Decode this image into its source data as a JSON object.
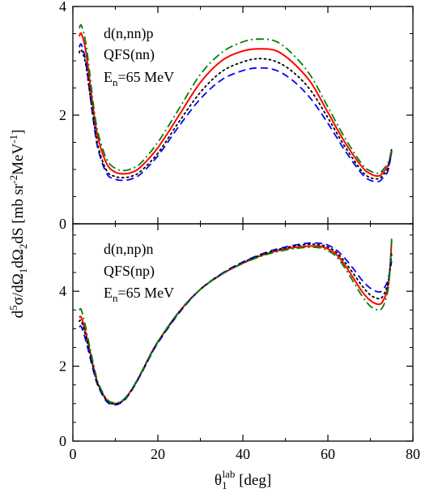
{
  "chart_data": [
    {
      "type": "line",
      "panel": "top",
      "annotations": [
        "d(n,nn)p",
        "QFS(nn)"
      ],
      "energy_label": {
        "base": "E",
        "sub": "n",
        "rest": "=65 MeV"
      },
      "xlim": [
        0,
        80
      ],
      "ylim": [
        0,
        4
      ],
      "yticks": [
        0,
        2,
        4
      ],
      "grid": false,
      "legend": "none",
      "series": [
        {
          "color": "#ff0000",
          "style": "solid",
          "x": [
            1.5,
            2,
            3,
            4,
            5,
            6,
            8,
            10,
            12,
            14,
            16,
            20,
            25,
            30,
            35,
            40,
            44,
            48,
            52,
            56,
            60,
            64,
            68,
            70,
            72,
            73,
            74,
            74.5,
            75
          ],
          "y": [
            3.45,
            3.5,
            3.2,
            2.6,
            2.0,
            1.55,
            1.1,
            0.95,
            0.92,
            0.95,
            1.05,
            1.4,
            2.0,
            2.6,
            3.0,
            3.18,
            3.22,
            3.18,
            2.95,
            2.6,
            2.05,
            1.5,
            1.05,
            0.92,
            0.88,
            0.95,
            1.05,
            1.15,
            1.32
          ]
        },
        {
          "color": "#0000ff",
          "style": "dashed",
          "x": [
            1.5,
            2,
            3,
            4,
            5,
            6,
            8,
            10,
            12,
            14,
            16,
            20,
            25,
            30,
            35,
            40,
            44,
            48,
            52,
            56,
            60,
            64,
            68,
            70,
            72,
            73,
            74,
            74.5,
            75
          ],
          "y": [
            3.25,
            3.3,
            3.0,
            2.4,
            1.8,
            1.35,
            0.92,
            0.82,
            0.8,
            0.83,
            0.92,
            1.25,
            1.8,
            2.3,
            2.65,
            2.82,
            2.87,
            2.82,
            2.62,
            2.3,
            1.85,
            1.35,
            0.92,
            0.8,
            0.78,
            0.85,
            0.95,
            1.1,
            1.35
          ]
        },
        {
          "color": "#000000",
          "style": "dotted",
          "x": [
            1.5,
            2,
            3,
            4,
            5,
            6,
            8,
            10,
            12,
            14,
            16,
            20,
            25,
            30,
            35,
            40,
            44,
            48,
            52,
            56,
            60,
            64,
            68,
            70,
            72,
            73,
            74,
            74.5,
            75
          ],
          "y": [
            3.15,
            3.2,
            2.95,
            2.4,
            1.85,
            1.4,
            0.97,
            0.87,
            0.85,
            0.88,
            0.97,
            1.3,
            1.88,
            2.42,
            2.8,
            2.98,
            3.04,
            2.98,
            2.78,
            2.45,
            1.95,
            1.42,
            0.97,
            0.85,
            0.83,
            0.9,
            1.0,
            1.15,
            1.38
          ]
        },
        {
          "color": "#008000",
          "style": "dashdot",
          "x": [
            1.5,
            2,
            3,
            4,
            5,
            6,
            8,
            10,
            12,
            14,
            16,
            20,
            25,
            30,
            35,
            40,
            44,
            48,
            52,
            56,
            60,
            64,
            68,
            70,
            72,
            73,
            74,
            74.5,
            75
          ],
          "y": [
            3.6,
            3.65,
            3.35,
            2.75,
            2.1,
            1.65,
            1.18,
            1.02,
            0.98,
            1.02,
            1.12,
            1.5,
            2.12,
            2.75,
            3.15,
            3.35,
            3.4,
            3.35,
            3.1,
            2.72,
            2.15,
            1.58,
            1.1,
            0.97,
            0.93,
            1.0,
            1.1,
            1.2,
            1.38
          ]
        }
      ]
    },
    {
      "type": "line",
      "panel": "bottom",
      "annotations": [
        "d(n,np)n",
        "QFS(np)"
      ],
      "energy_label": {
        "base": "E",
        "sub": "n",
        "rest": "=65 MeV"
      },
      "xlim": [
        0,
        80
      ],
      "ylim": [
        0,
        5.8
      ],
      "yticks": [
        0,
        2,
        4
      ],
      "xticks": [
        0,
        20,
        40,
        60,
        80
      ],
      "grid": false,
      "legend": "none",
      "series": [
        {
          "color": "#ff0000",
          "style": "solid",
          "x": [
            1.5,
            2,
            3,
            4,
            5,
            6,
            8,
            10,
            12,
            14,
            16,
            18,
            20,
            25,
            30,
            35,
            40,
            45,
            50,
            55,
            58,
            60,
            62,
            64,
            66,
            68,
            70,
            72,
            73,
            74,
            74.5,
            75
          ],
          "y": [
            3.3,
            3.3,
            2.9,
            2.4,
            1.9,
            1.5,
            1.1,
            1.0,
            1.1,
            1.4,
            1.8,
            2.25,
            2.65,
            3.45,
            4.05,
            4.45,
            4.75,
            4.98,
            5.13,
            5.2,
            5.2,
            5.13,
            4.98,
            4.7,
            4.35,
            4.0,
            3.75,
            3.65,
            3.75,
            4.05,
            4.45,
            5.35
          ]
        },
        {
          "color": "#0000ff",
          "style": "dashed",
          "x": [
            1.5,
            2,
            3,
            4,
            5,
            6,
            8,
            10,
            12,
            14,
            16,
            18,
            20,
            25,
            30,
            35,
            40,
            45,
            50,
            55,
            58,
            60,
            62,
            64,
            66,
            68,
            70,
            72,
            73,
            74,
            74.5,
            75
          ],
          "y": [
            3.05,
            3.05,
            2.7,
            2.25,
            1.8,
            1.45,
            1.05,
            0.97,
            1.08,
            1.38,
            1.78,
            2.22,
            2.62,
            3.42,
            4.05,
            4.47,
            4.78,
            5.02,
            5.18,
            5.28,
            5.28,
            5.23,
            5.1,
            4.88,
            4.6,
            4.3,
            4.08,
            3.98,
            4.05,
            4.25,
            4.5,
            4.8
          ]
        },
        {
          "color": "#000000",
          "style": "dotted",
          "x": [
            1.5,
            2,
            3,
            4,
            5,
            6,
            8,
            10,
            12,
            14,
            16,
            18,
            20,
            25,
            30,
            35,
            40,
            45,
            50,
            55,
            58,
            60,
            62,
            64,
            66,
            68,
            70,
            72,
            73,
            74,
            74.5,
            75
          ],
          "y": [
            3.2,
            3.2,
            2.82,
            2.35,
            1.86,
            1.48,
            1.08,
            0.99,
            1.1,
            1.4,
            1.8,
            2.24,
            2.64,
            3.44,
            4.05,
            4.46,
            4.77,
            5.0,
            5.16,
            5.25,
            5.24,
            5.18,
            5.04,
            4.78,
            4.47,
            4.15,
            3.9,
            3.8,
            3.88,
            4.15,
            4.47,
            5.0
          ]
        },
        {
          "color": "#008000",
          "style": "dashdot",
          "x": [
            1.5,
            2,
            3,
            4,
            5,
            6,
            8,
            10,
            12,
            14,
            16,
            18,
            20,
            25,
            30,
            35,
            40,
            45,
            50,
            55,
            58,
            60,
            62,
            64,
            66,
            68,
            70,
            72,
            73,
            74,
            74.5,
            75
          ],
          "y": [
            3.5,
            3.5,
            3.05,
            2.5,
            1.98,
            1.55,
            1.12,
            1.02,
            1.12,
            1.42,
            1.82,
            2.26,
            2.66,
            3.46,
            4.05,
            4.45,
            4.74,
            4.96,
            5.1,
            5.17,
            5.16,
            5.08,
            4.92,
            4.62,
            4.25,
            3.88,
            3.6,
            3.5,
            3.6,
            3.95,
            4.4,
            5.4
          ]
        }
      ]
    }
  ],
  "axes": {
    "ylabel": {
      "prefix": "d",
      "prefix_sup": "5",
      "main1": "σ/dΩ",
      "sub1": "1",
      "main2": "dΩ",
      "sub2": "2",
      "main3": "dS [mb sr",
      "sup3": "-2",
      "main4": "MeV",
      "sup4": "-1",
      "suffix": "]"
    },
    "xlabel": {
      "base": "θ",
      "sub": "1",
      "sup": "lab",
      "rest": " [deg]"
    }
  }
}
